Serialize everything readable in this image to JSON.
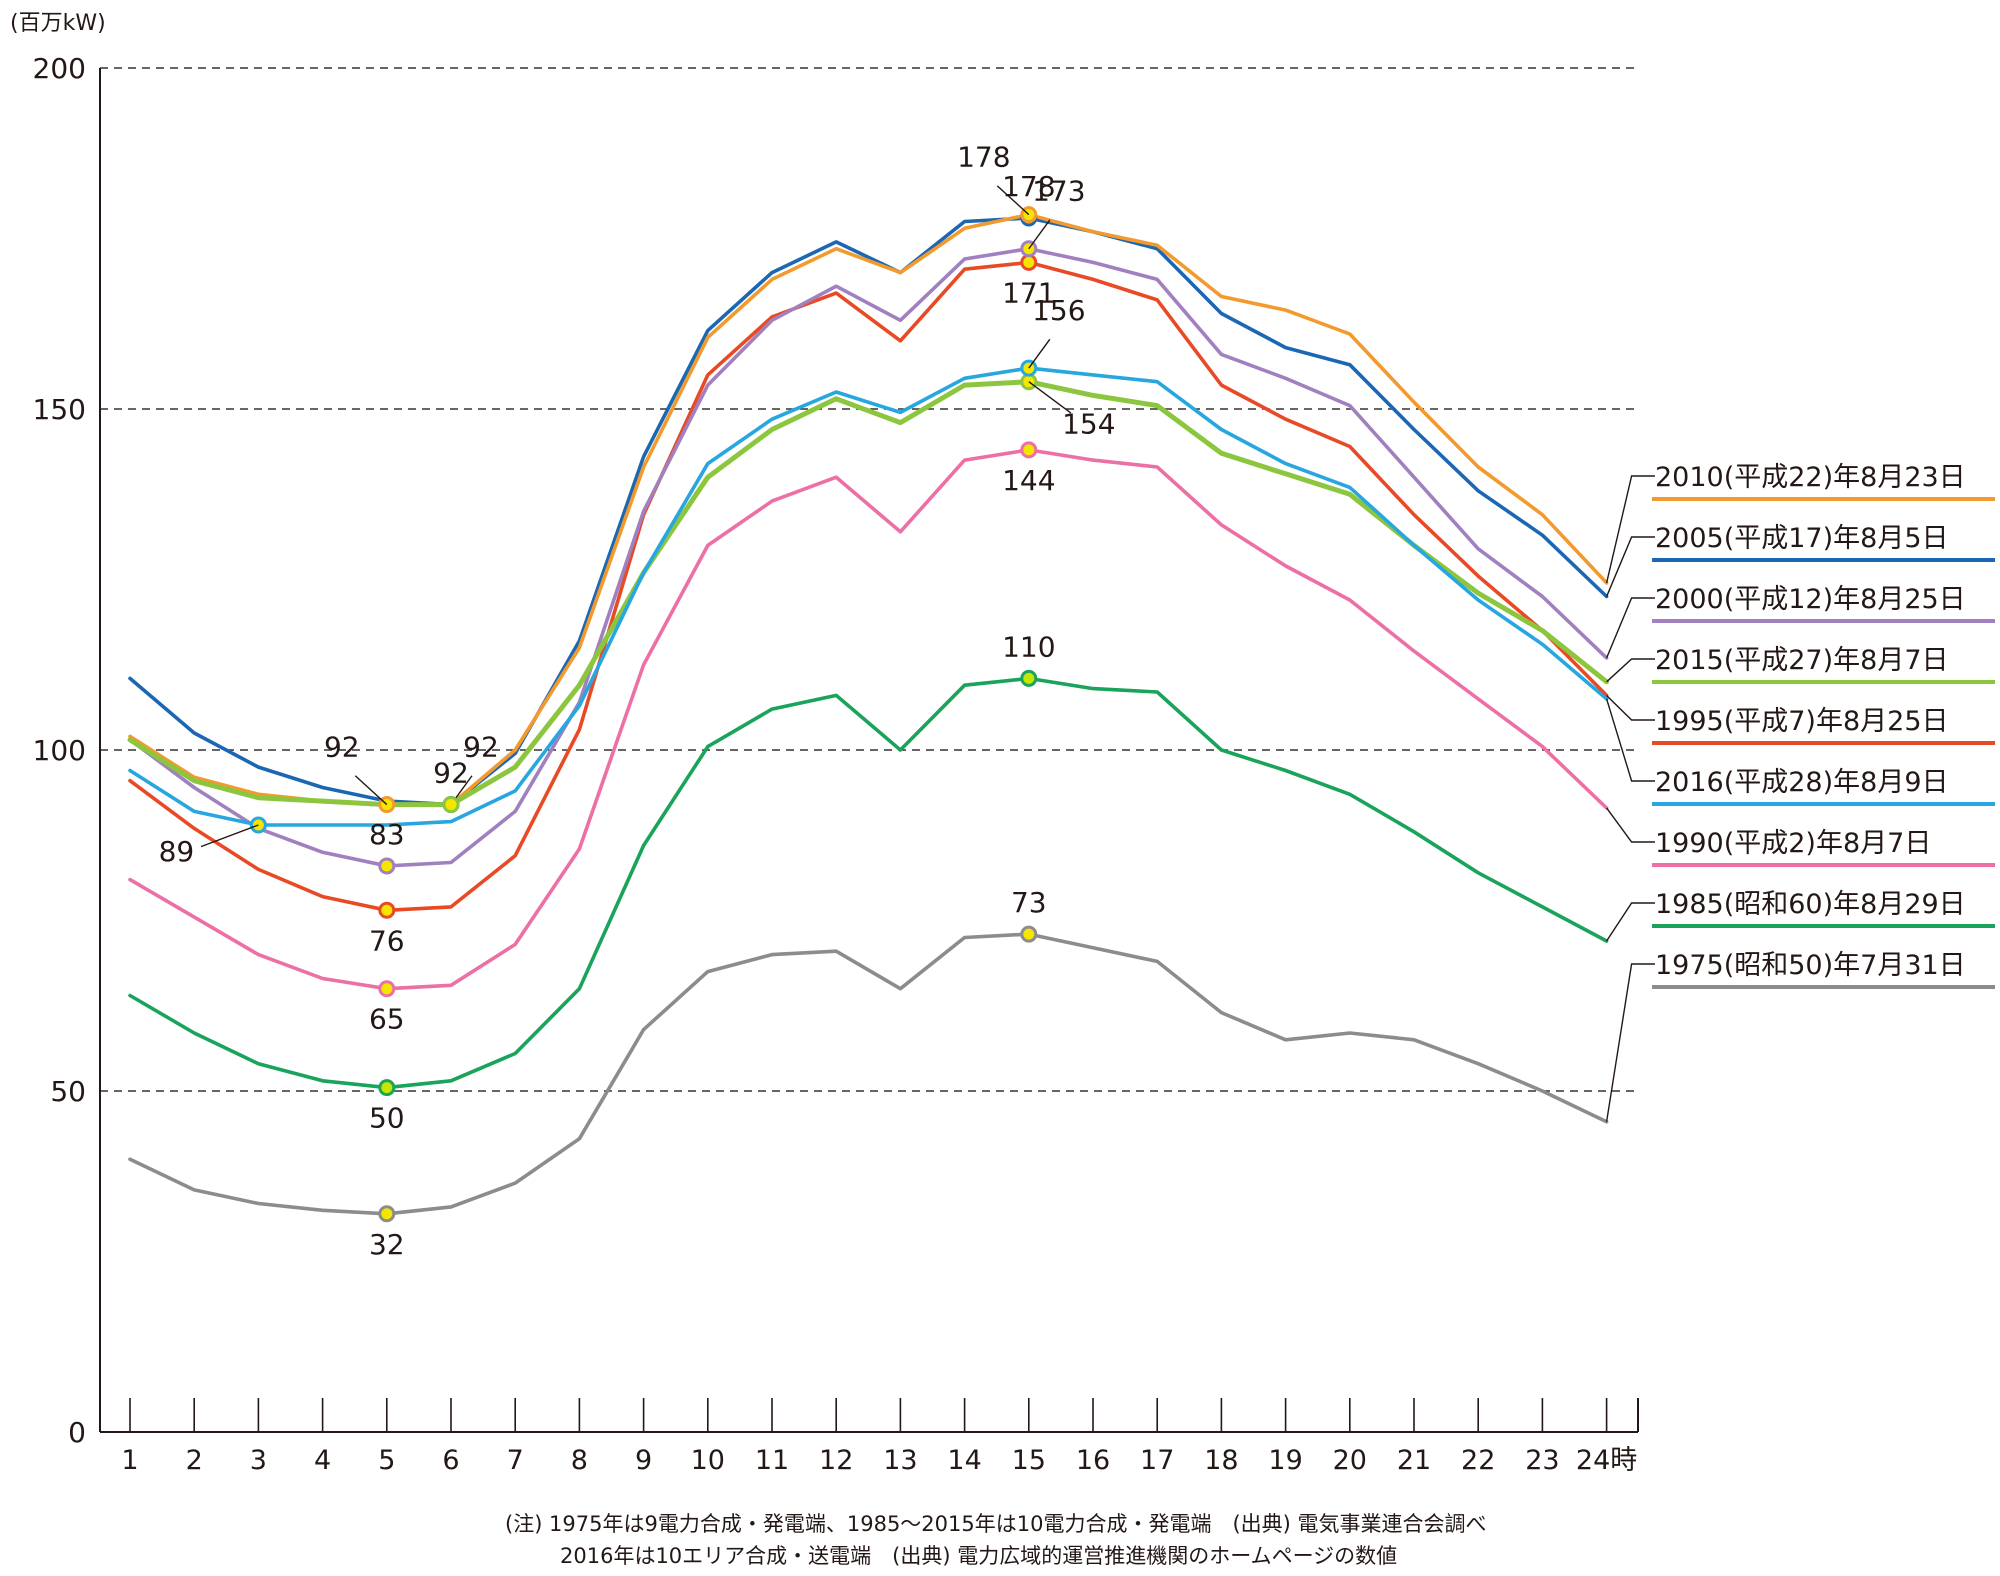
{
  "chart_data": {
    "type": "line",
    "ylabel": "(百万kW)",
    "ylim": [
      0,
      200
    ],
    "yticks": [
      0,
      50,
      100,
      150,
      200
    ],
    "grid": "dashed horizontal at 50, 100, 150, 200",
    "x": [
      1,
      2,
      3,
      4,
      5,
      6,
      7,
      8,
      9,
      10,
      11,
      12,
      13,
      14,
      15,
      16,
      17,
      18,
      19,
      20,
      21,
      22,
      23,
      24
    ],
    "xtick_labels": [
      "1",
      "2",
      "3",
      "4",
      "5",
      "6",
      "7",
      "8",
      "9",
      "10",
      "11",
      "12",
      "13",
      "14",
      "15",
      "16",
      "17",
      "18",
      "19",
      "20",
      "21",
      "22",
      "23",
      "24時"
    ],
    "legend_placement": "right, labels at line ends",
    "series": [
      {
        "name": "1975(昭和50)年7月31日",
        "color": "#8c8c8c",
        "values": [
          40,
          35.5,
          33.5,
          32.5,
          32,
          33,
          36.5,
          43,
          59,
          67.5,
          70,
          70.5,
          65,
          72.5,
          73,
          71,
          69,
          61.5,
          57.5,
          58.5,
          57.5,
          54,
          50,
          45.5
        ],
        "markers": [
          {
            "x": 5,
            "label": "32",
            "pos": "below",
            "fill": "#f5e600"
          },
          {
            "x": 15,
            "label": "73",
            "pos": "above",
            "fill": "#f5e600"
          }
        ]
      },
      {
        "name": "1985(昭和60)年8月29日",
        "color": "#1aa35a",
        "values": [
          64,
          58.5,
          54,
          51.5,
          50.5,
          51.5,
          55.5,
          65,
          86,
          100.5,
          106,
          108,
          100,
          109.5,
          110.5,
          109,
          108.5,
          100,
          97,
          93.5,
          88,
          82,
          77,
          72
        ],
        "markers": [
          {
            "x": 5,
            "label": "50",
            "pos": "below",
            "fill": "#c6e600"
          },
          {
            "x": 15,
            "label": "110",
            "pos": "above",
            "fill": "#c6e600"
          }
        ]
      },
      {
        "name": "1990(平成2)年8月7日",
        "color": "#ec6fa5",
        "values": [
          81,
          75.5,
          70,
          66.5,
          65,
          65.5,
          71.5,
          85.5,
          112.5,
          130,
          136.5,
          140,
          132,
          142.5,
          144,
          142.5,
          141.5,
          133,
          127,
          122,
          114.5,
          107.5,
          100.5,
          91.5
        ],
        "markers": [
          {
            "x": 5,
            "label": "65",
            "pos": "below",
            "fill": "#f5e600"
          },
          {
            "x": 15,
            "label": "144",
            "pos": "below",
            "fill": "#f5e600"
          }
        ]
      },
      {
        "name": "1995(平成7)年8月25日",
        "color": "#e84a26",
        "values": [
          95.5,
          88.5,
          82.5,
          78.5,
          76.5,
          77,
          84.5,
          103,
          134.5,
          155,
          163.5,
          167,
          160,
          170.5,
          171.5,
          169,
          166,
          153.5,
          148.5,
          144.5,
          134.5,
          125.5,
          117.5,
          108
        ],
        "markers": [
          {
            "x": 5,
            "label": "76",
            "pos": "below",
            "fill": "#f5e600"
          },
          {
            "x": 15,
            "label": "171",
            "pos": "below",
            "fill": "#f5e600"
          }
        ]
      },
      {
        "name": "2000(平成12)年8月25日",
        "color": "#a080be",
        "values": [
          101.5,
          94.5,
          88.5,
          85,
          83,
          83.5,
          91,
          107,
          135,
          153.5,
          163,
          168,
          163,
          172,
          173.5,
          171.5,
          169,
          158,
          154.5,
          150.5,
          140,
          129.5,
          122.5,
          113.5
        ],
        "markers": [
          {
            "x": 5,
            "label": "83",
            "pos": "above",
            "fill": "#f5e600"
          },
          {
            "x": 15,
            "label": "173",
            "pos": "above-right",
            "fill": "#f5e600"
          }
        ]
      },
      {
        "name": "2005(平成17)年8月5日",
        "color": "#1b67b3",
        "values": [
          110.5,
          102.5,
          97.5,
          94.5,
          92.5,
          92,
          99.5,
          116,
          143,
          161.5,
          170,
          174.5,
          170,
          177.5,
          178,
          176,
          173.5,
          164,
          159,
          156.5,
          147,
          138,
          131.5,
          122.5
        ],
        "markers": [
          {
            "x": 6,
            "label": "92",
            "pos": "above-right",
            "fill": "#f5e600"
          },
          {
            "x": 15,
            "label": "178",
            "pos": "above",
            "fill": "#f5e600"
          }
        ]
      },
      {
        "name": "2010(平成22)年8月23日",
        "color": "#f39a2e",
        "values": [
          102,
          96,
          93.5,
          92.5,
          92,
          92,
          100,
          115,
          141.5,
          160.5,
          169,
          173.5,
          170,
          176.5,
          178.5,
          176,
          174,
          166.5,
          164.5,
          161,
          151,
          141.5,
          134.5,
          124.5
        ],
        "markers": [
          {
            "x": 5,
            "label": "92",
            "pos": "above-left",
            "fill": "#f5e600"
          },
          {
            "x": 15,
            "label": "178",
            "pos": "above-left",
            "fill": "#f5e600"
          }
        ]
      },
      {
        "name": "2015(平成27)年8月7日",
        "color": "#8cc63f",
        "values": [
          101.5,
          95.5,
          93,
          92.5,
          92,
          92,
          97.5,
          109.5,
          126,
          140,
          147,
          151.5,
          148,
          153.5,
          154,
          152,
          150.5,
          143.5,
          140.5,
          137.5,
          130,
          123,
          117.5,
          110
        ],
        "markers": [
          {
            "x": 6,
            "label": "92",
            "pos": "above",
            "fill": "#f5e600"
          },
          {
            "x": 15,
            "label": "154",
            "pos": "below-right",
            "fill": "#f5e600"
          }
        ]
      },
      {
        "name": "2016(平成28)年8月9日",
        "color": "#27a6df",
        "values": [
          97,
          91,
          89,
          89,
          89,
          89.5,
          94,
          106.5,
          126,
          142,
          148.5,
          152.5,
          149.5,
          154.5,
          156,
          155,
          154,
          147,
          142,
          138.5,
          130,
          122,
          115.5,
          107.5
        ],
        "markers": [
          {
            "x": 3,
            "label": "89",
            "pos": "below-left",
            "fill": "#f5e600"
          },
          {
            "x": 15,
            "label": "156",
            "pos": "above-right",
            "fill": "#f5e600"
          }
        ]
      }
    ],
    "legend": [
      {
        "label": "2010(平成22)年8月23日",
        "color": "#f39a2e"
      },
      {
        "label": "2005(平成17)年8月5日",
        "color": "#1b67b3"
      },
      {
        "label": "2000(平成12)年8月25日",
        "color": "#a080be"
      },
      {
        "label": "2015(平成27)年8月7日",
        "color": "#8cc63f"
      },
      {
        "label": "1995(平成7)年8月25日",
        "color": "#e84a26"
      },
      {
        "label": "2016(平成28)年8月9日",
        "color": "#27a6df"
      },
      {
        "label": "1990(平成2)年8月7日",
        "color": "#ec6fa5"
      },
      {
        "label": "1985(昭和60)年8月29日",
        "color": "#1aa35a"
      },
      {
        "label": "1975(昭和50)年7月31日",
        "color": "#8c8c8c"
      }
    ]
  },
  "notes": {
    "line1": "(注) 1975年は9電力合成・発電端、1985〜2015年は10電力合成・発電端　(出典) 電気事業連合会調べ",
    "line2": "2016年は10エリア合成・送電端　(出典) 電力広域的運営推進機関のホームページの数値"
  }
}
